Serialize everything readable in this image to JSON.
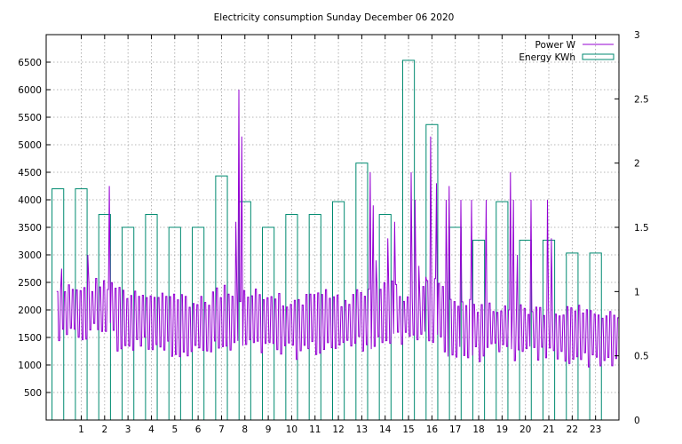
{
  "chart_data": {
    "type": "bar+line",
    "title": "Electricity consumption Sunday December 06 2020",
    "xlim": [
      -0.5,
      24
    ],
    "x_ticks": [
      1,
      2,
      3,
      4,
      5,
      6,
      7,
      8,
      9,
      10,
      11,
      12,
      13,
      14,
      15,
      16,
      17,
      18,
      19,
      20,
      21,
      22,
      23
    ],
    "y_left": {
      "range": [
        0,
        7000
      ],
      "ticks": [
        500,
        1000,
        1500,
        2000,
        2500,
        3000,
        3500,
        4000,
        4500,
        5000,
        5500,
        6000,
        6500
      ]
    },
    "y_right": {
      "range": [
        0,
        3
      ],
      "ticks": [
        0,
        0.5,
        1,
        1.5,
        2,
        2.5,
        3
      ],
      "tick_labels": [
        "0",
        "0.5",
        "1",
        "1.5",
        "2",
        "2.5",
        "3"
      ]
    },
    "grid": true,
    "legend_position": "top-right",
    "series": [
      {
        "name": "Energy KWh",
        "type": "bar",
        "axis": "right",
        "color": "#008a70",
        "hours": [
          0,
          1,
          2,
          3,
          4,
          5,
          6,
          7,
          8,
          9,
          10,
          11,
          12,
          13,
          14,
          15,
          16,
          17,
          18,
          19,
          20,
          21,
          22,
          23
        ],
        "values": [
          1.8,
          1.8,
          1.6,
          1.5,
          1.6,
          1.5,
          1.5,
          1.9,
          1.7,
          1.5,
          1.6,
          1.6,
          1.7,
          2.0,
          1.6,
          2.8,
          2.3,
          1.5,
          1.4,
          1.7,
          1.4,
          1.4,
          1.3,
          1.3
        ]
      },
      {
        "name": "Power W",
        "type": "line",
        "axis": "left",
        "color": "#9400d3",
        "profile_by_hour": {
          "low": [
            1350,
            1400,
            1500,
            1200,
            1250,
            1150,
            1100,
            1150,
            1200,
            1150,
            1100,
            1150,
            1200,
            1250,
            1300,
            1300,
            1400,
            1050,
            1050,
            1100,
            1050,
            1050,
            1000,
            950
          ],
          "high": [
            2500,
            2550,
            2600,
            2450,
            2400,
            2350,
            2250,
            2450,
            2400,
            2300,
            2250,
            2450,
            2300,
            2400,
            2550,
            2300,
            2600,
            2300,
            2200,
            2150,
            2100,
            2100,
            2100,
            2050
          ]
        },
        "spikes": [
          {
            "x": 0.15,
            "y": 2750
          },
          {
            "x": 1.3,
            "y": 3000
          },
          {
            "x": 2.2,
            "y": 4250
          },
          {
            "x": 7.6,
            "y": 3600
          },
          {
            "x": 7.75,
            "y": 6000
          },
          {
            "x": 7.85,
            "y": 5150
          },
          {
            "x": 13.35,
            "y": 4500
          },
          {
            "x": 13.5,
            "y": 3900
          },
          {
            "x": 13.6,
            "y": 2900
          },
          {
            "x": 14.1,
            "y": 3300
          },
          {
            "x": 14.4,
            "y": 3600
          },
          {
            "x": 15.1,
            "y": 4500
          },
          {
            "x": 15.3,
            "y": 4000
          },
          {
            "x": 15.45,
            "y": 2800
          },
          {
            "x": 15.75,
            "y": 2600
          },
          {
            "x": 15.95,
            "y": 5150
          },
          {
            "x": 16.2,
            "y": 4300
          },
          {
            "x": 16.6,
            "y": 4000
          },
          {
            "x": 16.75,
            "y": 4250
          },
          {
            "x": 17.25,
            "y": 4000
          },
          {
            "x": 17.7,
            "y": 4000
          },
          {
            "x": 18.3,
            "y": 4000
          },
          {
            "x": 19.35,
            "y": 4500
          },
          {
            "x": 19.5,
            "y": 4000
          },
          {
            "x": 19.65,
            "y": 3000
          },
          {
            "x": 20.25,
            "y": 4000
          },
          {
            "x": 20.95,
            "y": 4000
          },
          {
            "x": 21.1,
            "y": 3300
          }
        ]
      }
    ]
  }
}
